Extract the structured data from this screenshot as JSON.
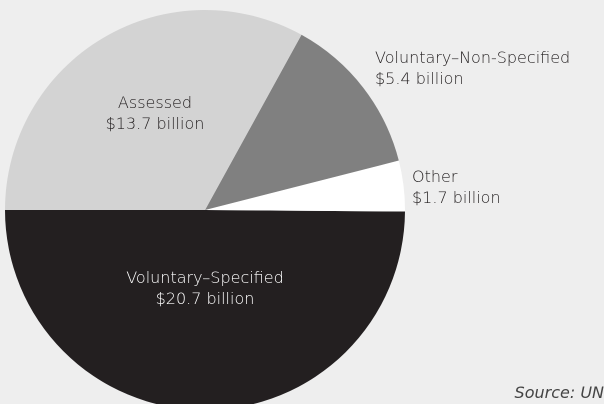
{
  "chart_data": {
    "type": "pie",
    "categories": [
      "Voluntary–Specified",
      "Other",
      "Voluntary–Non-Specified",
      "Assessed"
    ],
    "values": [
      20.7,
      1.7,
      5.4,
      13.7
    ],
    "value_labels": [
      "$20.7 billion",
      "$1.7 billion",
      "$5.4 billion",
      "$13.7 billion"
    ],
    "colors": [
      "#231f20",
      "#ffffff",
      "#808080",
      "#d3d3d3"
    ],
    "source": "Source: UN"
  }
}
